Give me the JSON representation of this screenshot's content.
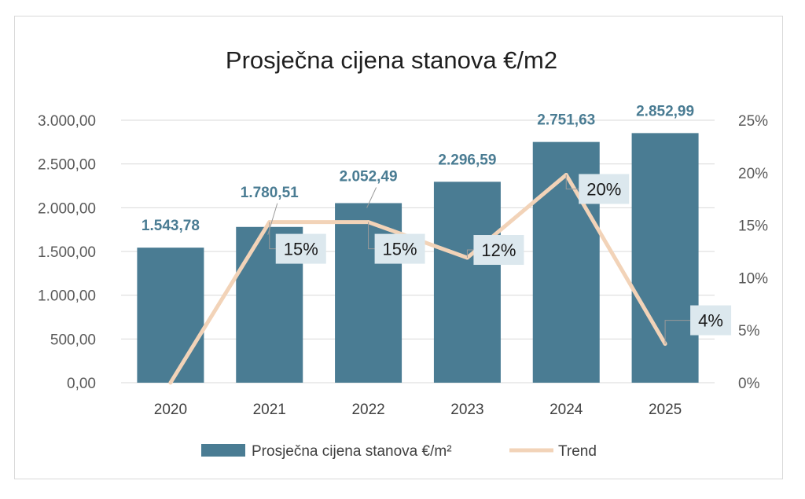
{
  "chart_data": {
    "type": "bar",
    "title": "Prosječna cijena stanova €/m2",
    "categories": [
      "2020",
      "2021",
      "2022",
      "2023",
      "2024",
      "2025"
    ],
    "series": [
      {
        "name": "Prosječna cijena stanova €/m²",
        "type": "bar",
        "axis": "left",
        "values": [
          1543.78,
          1780.51,
          2052.49,
          2296.59,
          2751.63,
          2852.99
        ],
        "labels": [
          "1.543,78",
          "1.780,51",
          "2.052,49",
          "2.296,59",
          "2.751,63",
          "2.852,99"
        ]
      },
      {
        "name": "Trend",
        "type": "line",
        "axis": "right",
        "values": [
          0,
          15.3,
          15.3,
          11.9,
          19.8,
          3.7
        ],
        "labels": [
          "",
          "15%",
          "15%",
          "12%",
          "20%",
          "4%"
        ]
      }
    ],
    "ylim": [
      0,
      3000
    ],
    "yticks": [
      "0,00",
      "500,00",
      "1.000,00",
      "1.500,00",
      "2.000,00",
      "2.500,00",
      "3.000,00"
    ],
    "y2lim": [
      0,
      25
    ],
    "y2ticks": [
      "0%",
      "5%",
      "10%",
      "15%",
      "20%",
      "25%"
    ],
    "grid": true,
    "legend": "bottom",
    "colors": {
      "bar": "#4a7c93",
      "line": "#f2d3b8",
      "grid": "#d9d9d9",
      "label_box": "#dce8ee"
    }
  }
}
